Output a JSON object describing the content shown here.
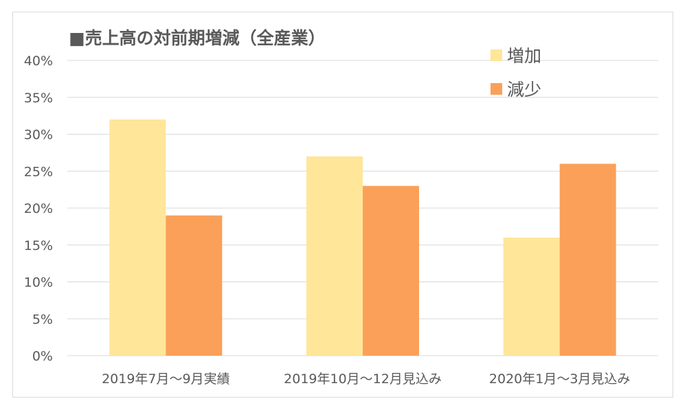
{
  "chart_data": {
    "type": "bar",
    "title": "■売上高の対前期増減（全産業）",
    "categories": [
      "2019年7月～9月実績",
      "2019年10月～12月見込み",
      "2020年1月～3月見込み"
    ],
    "series": [
      {
        "name": "増加",
        "values": [
          32,
          27,
          16
        ],
        "color": "#ffe699"
      },
      {
        "name": "減少",
        "values": [
          19,
          23,
          26
        ],
        "color": "#fba059"
      }
    ],
    "y_ticks": [
      "0%",
      "5%",
      "10%",
      "15%",
      "20%",
      "25%",
      "30%",
      "35%",
      "40%"
    ],
    "ylim": [
      0,
      40
    ],
    "unit": "%",
    "grid": true,
    "legend_position": "top-right",
    "xlabel": "",
    "ylabel": ""
  }
}
